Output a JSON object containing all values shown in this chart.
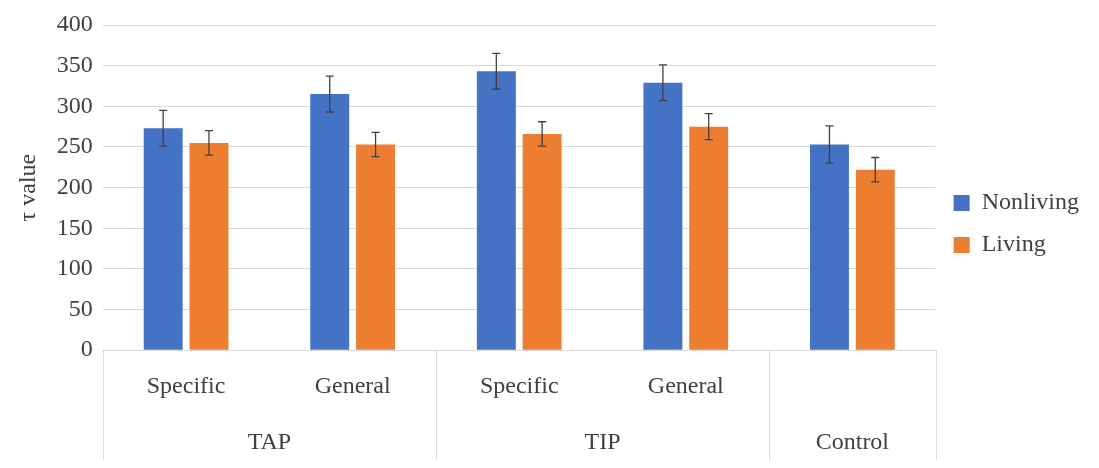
{
  "chart_data": {
    "type": "bar",
    "ylabel": "τ value",
    "categories": [
      "Specific",
      "General",
      "Specific",
      "General",
      null
    ],
    "series": [
      {
        "name": "Nonliving",
        "color": "#4472c4",
        "values": [
          273,
          315,
          343,
          329,
          253
        ],
        "errors": [
          22,
          22,
          22,
          22,
          23
        ]
      },
      {
        "name": "Living",
        "color": "#ed7d31",
        "values": [
          255,
          253,
          266,
          275,
          222
        ],
        "errors": [
          15,
          15,
          15,
          16,
          15
        ]
      }
    ],
    "ylim": [
      0,
      400
    ],
    "yticks": [
      0,
      50,
      100,
      150,
      200,
      250,
      300,
      350,
      400
    ],
    "grid": "y",
    "legend": "right",
    "annotations": [
      "TAP",
      "TIP",
      "Control"
    ]
  }
}
